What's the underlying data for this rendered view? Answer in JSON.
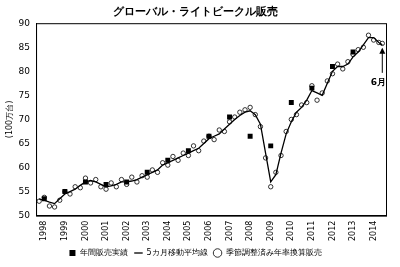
{
  "chart_data": {
    "type": "scatter",
    "title": "グローバル・ライトビークル販売",
    "y_label": "(100万台)",
    "xlim": [
      1997.6,
      2014.6
    ],
    "xticks": [
      1998,
      1999,
      2000,
      2001,
      2002,
      2003,
      2004,
      2005,
      2006,
      2007,
      2008,
      2009,
      2010,
      2011,
      2012,
      2013,
      2014
    ],
    "ylim": [
      50,
      90
    ],
    "yticks": [
      50,
      55,
      60,
      65,
      70,
      75,
      80,
      85,
      90
    ],
    "grid": false,
    "legend": "bottom",
    "series": [
      {
        "name": "季節調整済み年率換算販売",
        "type": "scatter",
        "marker": "circle",
        "color": "#000000",
        "x": [
          1997.75,
          1998.0,
          1998.25,
          1998.5,
          1998.75,
          1999.0,
          1999.25,
          1999.5,
          1999.75,
          2000.0,
          2000.25,
          2000.5,
          2000.75,
          2001.0,
          2001.25,
          2001.5,
          2001.75,
          2002.0,
          2002.25,
          2002.5,
          2002.75,
          2003.0,
          2003.25,
          2003.5,
          2003.75,
          2004.0,
          2004.25,
          2004.5,
          2004.75,
          2005.0,
          2005.25,
          2005.5,
          2005.75,
          2006.0,
          2006.25,
          2006.5,
          2006.75,
          2007.0,
          2007.25,
          2007.5,
          2007.75,
          2008.0,
          2008.25,
          2008.5,
          2008.75,
          2009.0,
          2009.25,
          2009.5,
          2009.75,
          2010.0,
          2010.25,
          2010.5,
          2010.75,
          2011.0,
          2011.25,
          2011.5,
          2011.75,
          2012.0,
          2012.25,
          2012.5,
          2012.75,
          2013.0,
          2013.25,
          2013.5,
          2013.75,
          2014.0,
          2014.25,
          2014.42
        ],
        "values": [
          53.0,
          53.8,
          52.0,
          51.8,
          53.2,
          55.0,
          54.5,
          56.0,
          55.8,
          57.8,
          56.8,
          57.5,
          56.0,
          55.5,
          56.8,
          56.0,
          57.5,
          56.5,
          58.0,
          57.0,
          58.3,
          58.0,
          59.5,
          59.0,
          61.0,
          60.5,
          62.3,
          61.5,
          63.0,
          62.5,
          64.5,
          63.5,
          65.5,
          66.5,
          65.8,
          67.8,
          67.5,
          69.5,
          70.5,
          71.5,
          72.0,
          72.5,
          71.0,
          68.5,
          62.0,
          56.0,
          59.0,
          62.5,
          67.5,
          70.0,
          71.0,
          73.0,
          73.5,
          77.0,
          74.0,
          75.5,
          78.0,
          79.5,
          81.5,
          80.5,
          82.0,
          83.5,
          84.5,
          85.0,
          87.5,
          86.5,
          86.0,
          85.8
        ]
      },
      {
        "name": "5カ月移動平均線",
        "type": "line",
        "line_style": "solid",
        "color": "#000000",
        "x": [
          1997.75,
          1998.0,
          1998.25,
          1998.5,
          1998.75,
          1999.0,
          1999.25,
          1999.5,
          1999.75,
          2000.0,
          2000.25,
          2000.5,
          2000.75,
          2001.0,
          2001.25,
          2001.5,
          2001.75,
          2002.0,
          2002.25,
          2002.5,
          2002.75,
          2003.0,
          2003.25,
          2003.5,
          2003.75,
          2004.0,
          2004.25,
          2004.5,
          2004.75,
          2005.0,
          2005.25,
          2005.5,
          2005.75,
          2006.0,
          2006.25,
          2006.5,
          2006.75,
          2007.0,
          2007.25,
          2007.5,
          2007.75,
          2008.0,
          2008.25,
          2008.5,
          2008.75,
          2009.0,
          2009.25,
          2009.5,
          2009.75,
          2010.0,
          2010.25,
          2010.5,
          2010.75,
          2011.0,
          2011.25,
          2011.5,
          2011.75,
          2012.0,
          2012.25,
          2012.5,
          2012.75,
          2013.0,
          2013.25,
          2013.5,
          2013.75,
          2014.0,
          2014.25,
          2014.42
        ],
        "values": [
          53.5,
          53.2,
          52.8,
          52.5,
          53.5,
          54.5,
          55.0,
          55.5,
          56.3,
          57.0,
          57.3,
          57.0,
          56.5,
          56.0,
          56.2,
          56.5,
          57.0,
          57.0,
          57.2,
          57.5,
          58.0,
          58.5,
          59.0,
          59.5,
          60.5,
          61.0,
          61.5,
          62.0,
          62.5,
          63.0,
          63.5,
          64.0,
          65.0,
          66.0,
          66.5,
          67.0,
          68.0,
          69.0,
          70.0,
          70.8,
          71.5,
          71.8,
          71.0,
          69.0,
          63.0,
          57.0,
          58.5,
          63.0,
          67.0,
          69.5,
          71.5,
          72.5,
          74.0,
          76.0,
          75.5,
          75.0,
          77.5,
          80.0,
          81.0,
          81.0,
          81.5,
          83.0,
          84.0,
          85.5,
          87.0,
          87.0,
          86.0,
          85.5
        ]
      },
      {
        "name": "年間販売実績",
        "type": "scatter",
        "marker": "square",
        "color": "#000000",
        "x": [
          1998,
          1999,
          2000,
          2001,
          2002,
          2003,
          2004,
          2005,
          2006,
          2007,
          2008,
          2009,
          2010,
          2011,
          2012,
          2013
        ],
        "values": [
          53.5,
          55.0,
          57.0,
          56.5,
          57.0,
          59.0,
          61.5,
          63.5,
          66.5,
          70.5,
          66.5,
          64.5,
          73.5,
          76.5,
          81.0,
          84.0
        ]
      }
    ],
    "annotations": [
      {
        "text": "6月",
        "x": 2014.42,
        "y": 85.5
      }
    ]
  }
}
